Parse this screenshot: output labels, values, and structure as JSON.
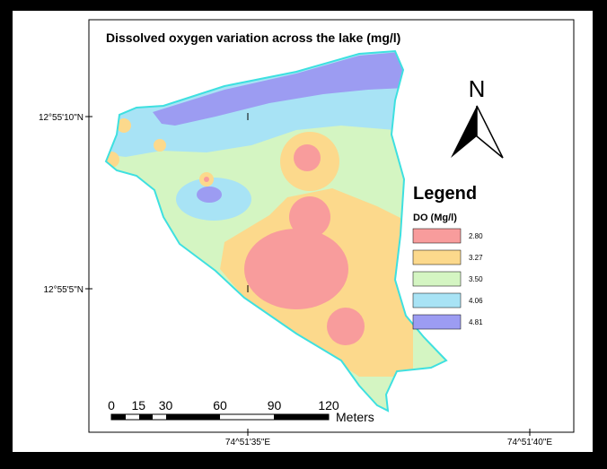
{
  "title": "Dissolved oxygen variation across the lake (mg/l)",
  "coordinates": {
    "latitudes": [
      "12°55'10\"N",
      "12°55'5\"N"
    ],
    "longitudes": [
      "74^51'35\"E",
      "74^51'40\"E"
    ]
  },
  "north_arrow": "N",
  "legend": {
    "title": "Legend",
    "subtitle": "DO (Mg/l)",
    "items": [
      {
        "label": "2.80",
        "color": "#f89c9c"
      },
      {
        "label": "3.27",
        "color": "#fcd98c"
      },
      {
        "label": "3.50",
        "color": "#d4f5c2"
      },
      {
        "label": "4.06",
        "color": "#a8e3f5"
      },
      {
        "label": "4.81",
        "color": "#9c9cf2"
      }
    ]
  },
  "scale_bar": {
    "ticks": [
      0,
      15,
      30,
      60,
      90,
      120
    ],
    "unit": "Meters"
  }
}
